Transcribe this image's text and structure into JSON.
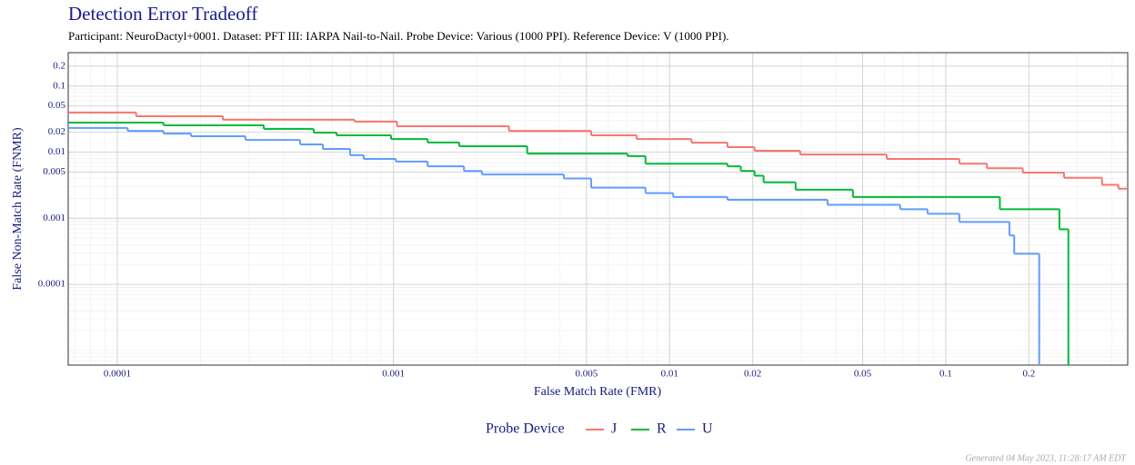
{
  "chart_data": {
    "type": "step",
    "title": "Detection Error Tradeoff",
    "subtitle": "Participant: NeuroDactyl+0001. Dataset: PFT III: IARPA Nail-to-Nail. Probe Device: Various (1000 PPI). Reference Device: V (1000 PPI).",
    "x_label": "False Match Rate (FMR)",
    "y_label": "False Non-Match Rate (FNMR)",
    "legend_title": "Probe Device",
    "footer": "Generated 04 May 2023, 11:28:17 AM EDT",
    "xlog": true,
    "ylog": true,
    "grid": true,
    "xlim": [
      6.64e-05,
      0.456
    ],
    "ylim": [
      6e-06,
      0.32
    ],
    "xticks": [
      0.0001,
      0.001,
      0.005,
      0.01,
      0.02,
      0.05,
      0.1,
      0.2
    ],
    "yticks": [
      0.0001,
      0.001,
      0.005,
      0.01,
      0.02,
      0.05,
      0.1,
      0.2
    ],
    "xminorticks": [
      7e-05,
      8e-05,
      9e-05,
      0.0002,
      0.0003,
      0.0004,
      0.0005,
      0.0006,
      0.0007,
      0.0008,
      0.0009,
      0.002,
      0.003,
      0.004,
      0.006,
      0.007,
      0.008,
      0.009,
      0.03,
      0.04,
      0.06,
      0.07,
      0.08,
      0.09,
      0.3,
      0.4
    ],
    "yminorticks": [
      7e-06,
      8e-06,
      9e-06,
      1e-05,
      2e-05,
      3e-05,
      4e-05,
      5e-05,
      6e-05,
      7e-05,
      8e-05,
      9e-05,
      0.0002,
      0.0003,
      0.0004,
      0.0005,
      0.0006,
      0.0007,
      0.0008,
      0.0009,
      0.002,
      0.003,
      0.004,
      0.006,
      0.007,
      0.008,
      0.009,
      0.03,
      0.04,
      0.06,
      0.07,
      0.08,
      0.09,
      0.3
    ],
    "series": [
      {
        "name": "J",
        "color": "#F8766D",
        "x": [
          6.64e-05,
          0.000117,
          0.000241,
          0.000723,
          0.00103,
          0.00262,
          0.0052,
          0.00759,
          0.012,
          0.0162,
          0.0203,
          0.0297,
          0.0611,
          0.112,
          0.141,
          0.19,
          0.268,
          0.368,
          0.422
        ],
        "values": [
          0.0398,
          0.035,
          0.031,
          0.029,
          0.0247,
          0.021,
          0.018,
          0.0158,
          0.0139,
          0.0119,
          0.0105,
          0.0092,
          0.0079,
          0.0067,
          0.0057,
          0.0049,
          0.0041,
          0.0032,
          0.0028
        ]
      },
      {
        "name": "R",
        "color": "#00BA38",
        "x": [
          6.64e-05,
          0.000147,
          0.000339,
          0.000514,
          0.000622,
          0.00098,
          0.00133,
          0.00173,
          0.00305,
          0.00704,
          0.00818,
          0.0162,
          0.0181,
          0.0203,
          0.0219,
          0.0286,
          0.0461,
          0.157,
          0.258,
          0.278
        ],
        "values": [
          0.028,
          0.0255,
          0.0225,
          0.0198,
          0.018,
          0.0158,
          0.014,
          0.0123,
          0.0095,
          0.0087,
          0.0067,
          0.0061,
          0.0052,
          0.0044,
          0.0035,
          0.0027,
          0.0021,
          0.00137,
          0.00068,
          0
        ]
      },
      {
        "name": "U",
        "color": "#619CFF",
        "x": [
          6.64e-05,
          0.000109,
          0.000147,
          0.000185,
          0.000291,
          0.000459,
          0.000555,
          0.000697,
          0.00078,
          0.00102,
          0.00133,
          0.0018,
          0.00209,
          0.00414,
          0.0052,
          0.00818,
          0.0103,
          0.0162,
          0.0373,
          0.0684,
          0.0859,
          0.112,
          0.17,
          0.177,
          0.218
        ],
        "values": [
          0.0232,
          0.021,
          0.0191,
          0.0174,
          0.0153,
          0.0131,
          0.0112,
          0.009,
          0.0079,
          0.0072,
          0.0061,
          0.0052,
          0.0046,
          0.004,
          0.0029,
          0.0024,
          0.0021,
          0.0019,
          0.0016,
          0.00137,
          0.00117,
          0.00088,
          0.00055,
          0.00029,
          0
        ]
      }
    ]
  }
}
